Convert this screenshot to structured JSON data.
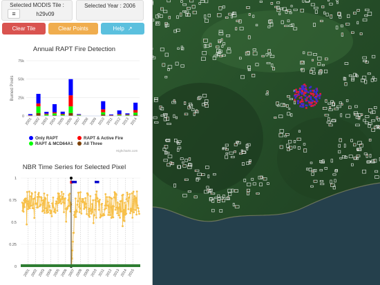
{
  "controls": {
    "tile_label": "Selected MODIS Tile :",
    "tile_value": "h29v09",
    "year_label": "Selected Year : 2006",
    "menu_icon": "hamburger-icon",
    "clear_tile": "Clear Tile",
    "clear_points": "Clear Points",
    "help": "Help",
    "help_icon": "external-link-icon"
  },
  "colors": {
    "danger": "#d9534f",
    "warning": "#f0ad4e",
    "info": "#5bc0de",
    "only_rapt": "#0000ff",
    "rapt_active": "#ff0000",
    "rapt_mcd": "#00ff00",
    "all_three": "#7b3f00",
    "nbr_series": "#f7c04a"
  },
  "chart_data": [
    {
      "type": "bar",
      "title": "Annual RAPT Fire Detection",
      "ylabel": "Burned Pixels",
      "ylim": [
        0,
        75000
      ],
      "y_ticks": [
        "0",
        "25k",
        "50k",
        "75k"
      ],
      "y_tick_values": [
        0,
        25000,
        50000,
        75000
      ],
      "categories": [
        "2001",
        "2002",
        "2003",
        "2004",
        "2005",
        "2006",
        "2007",
        "2008",
        "2009",
        "2010",
        "2011",
        "2012",
        "2013",
        "2014"
      ],
      "series": [
        {
          "name": "All Three",
          "color": "#7b3f00",
          "values": [
            200,
            4000,
            600,
            1000,
            700,
            4000,
            500,
            0,
            0,
            2000,
            300,
            700,
            600,
            1500
          ]
        },
        {
          "name": "RAPT & MCD64A1",
          "color": "#00ff00",
          "values": [
            500,
            9000,
            1500,
            2500,
            1200,
            9000,
            700,
            0,
            0,
            3000,
            500,
            900,
            700,
            3000
          ]
        },
        {
          "name": "RAPT & Active Fire",
          "color": "#ff0000",
          "values": [
            300,
            4000,
            1000,
            1500,
            900,
            15000,
            500,
            0,
            0,
            4000,
            200,
            900,
            700,
            3500
          ]
        },
        {
          "name": "Only RAPT",
          "color": "#0000ff",
          "values": [
            1500,
            13000,
            2500,
            11000,
            3000,
            22000,
            800,
            0,
            0,
            11000,
            1000,
            5000,
            1500,
            10000
          ]
        }
      ],
      "legend": {
        "placement": "bottom",
        "entries": [
          "Only RAPT",
          "RAPT & Active Fire",
          "RAPT & MCD64A1",
          "All Three"
        ]
      },
      "credits": "Highcharts.com"
    },
    {
      "type": "line",
      "title": "NBR Time Series for Selected Pixel",
      "ylim": [
        0,
        1
      ],
      "y_ticks": [
        "0",
        "0.25",
        "0.5",
        "0.75",
        "1"
      ],
      "y_tick_values": [
        0,
        0.25,
        0.5,
        0.75,
        1
      ],
      "x_ticks": [
        "2001",
        "2002",
        "2003",
        "2004",
        "2005",
        "2006",
        "2007",
        "2008",
        "2009",
        "2010",
        "2011",
        "2012",
        "2013",
        "2014",
        "2015"
      ],
      "xlim": [
        2000.0,
        2016.0
      ],
      "series_name": "NBR",
      "fire_date": 2006.75,
      "fire_bars": [
        [
          2006.8,
          2007.5
        ],
        [
          2009.9,
          2010.5
        ]
      ],
      "pre_fire_ramp": [
        0.0,
        0.1,
        0.18,
        0.28,
        0.38
      ]
    }
  ]
}
